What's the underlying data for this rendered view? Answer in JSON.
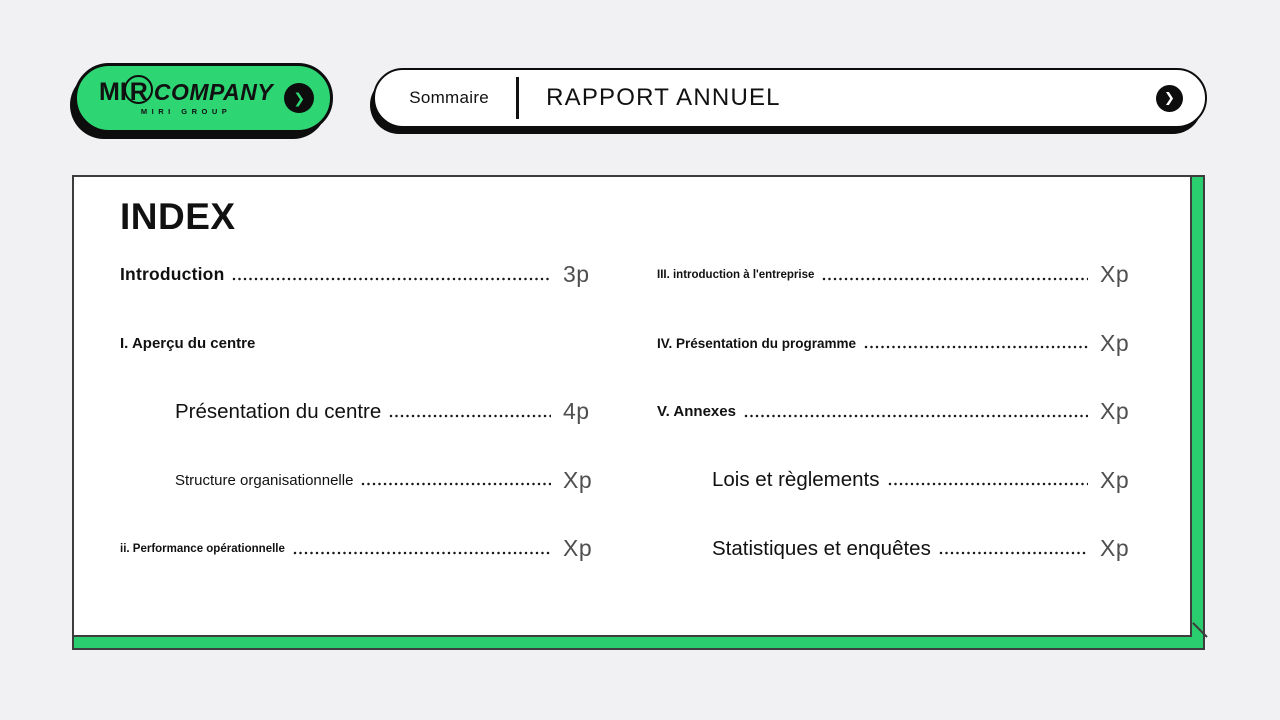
{
  "colors": {
    "background": "#f1f1f3",
    "brand_green": "#2ed573",
    "board_green": "#2bce6f",
    "ink": "#0d0d0d",
    "board_border": "#3d3d3d",
    "page_number_gray": "#4f4f4f"
  },
  "logo": {
    "brand_m": "M",
    "brand_i": "I",
    "brand_r": "R",
    "brand_company": "COMPANY",
    "subtitle": "MIRI GROUP",
    "arrow_icon": "❯"
  },
  "header": {
    "section_label": "Sommaire",
    "title": "RAPPORT ANNUEL",
    "arrow_icon": "❯"
  },
  "index": {
    "title": "INDEX",
    "left": [
      {
        "label": "Introduction",
        "page": "3p",
        "variant": "v-intro",
        "indent": false,
        "dots": true
      },
      {
        "label": "I. Aperçu du centre",
        "page": "",
        "variant": "v-sec",
        "indent": false,
        "dots": false
      },
      {
        "label": "Présentation du centre",
        "page": "4p",
        "variant": "v-sub-xl",
        "indent": true,
        "dots": true
      },
      {
        "label": "Structure organisationnelle",
        "page": "Xp",
        "variant": "v-sub-md",
        "indent": true,
        "dots": true
      },
      {
        "label": "ii. Performance opérationnelle",
        "page": "Xp",
        "variant": "v-tiny",
        "indent": false,
        "dots": true
      }
    ],
    "right": [
      {
        "label": "III. introduction à l'entreprise",
        "page": "Xp",
        "variant": "v-tiny",
        "indent": false,
        "dots": true
      },
      {
        "label": "IV. Présentation du programme",
        "page": "Xp",
        "variant": "v-sec2",
        "indent": false,
        "dots": true
      },
      {
        "label": "V. Annexes",
        "page": "Xp",
        "variant": "v-sec",
        "indent": false,
        "dots": true
      },
      {
        "label": "Lois et règlements",
        "page": "Xp",
        "variant": "v-sub-xl",
        "indent": true,
        "dots": true
      },
      {
        "label": "Statistiques et enquêtes",
        "page": "Xp",
        "variant": "v-sub-xl",
        "indent": true,
        "dots": true
      }
    ]
  }
}
